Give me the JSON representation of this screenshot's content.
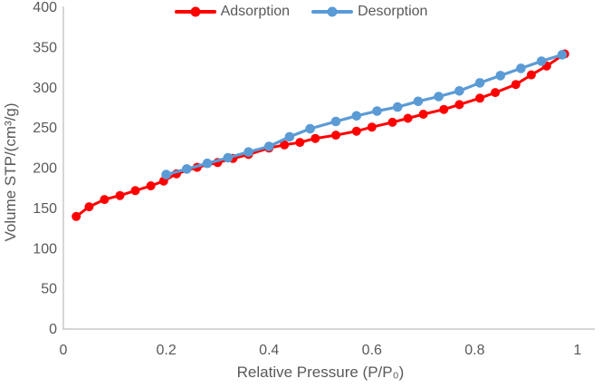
{
  "chart_data": {
    "type": "line",
    "title": "",
    "xlabel": "Relative Pressure (P/P₀)",
    "ylabel": "Volume STP/(cm³/g)",
    "xlim": [
      0,
      1
    ],
    "ylim": [
      0,
      400
    ],
    "x_ticks": {
      "values": [
        0,
        0.2,
        0.4,
        0.6,
        0.8,
        1
      ],
      "labels": [
        "0",
        "0.2",
        "0.4",
        "0.6",
        "0.8",
        "1"
      ]
    },
    "y_ticks": {
      "values": [
        0,
        50,
        100,
        150,
        200,
        250,
        300,
        350,
        400
      ],
      "labels": [
        "0",
        "50",
        "100",
        "150",
        "200",
        "250",
        "300",
        "350",
        "400"
      ]
    },
    "grid": false,
    "legend_position": "top-center",
    "colors": {
      "axis_line": "#BFBFBF",
      "text": "#595959",
      "background": "#FFFFFF"
    },
    "series": [
      {
        "name": "Adsorption",
        "color": "#FF0000",
        "marker": "circle",
        "marker_radius": 5,
        "line_width": 3,
        "points": [
          [
            0.025,
            140
          ],
          [
            0.05,
            152
          ],
          [
            0.08,
            161
          ],
          [
            0.11,
            166
          ],
          [
            0.14,
            172
          ],
          [
            0.17,
            178
          ],
          [
            0.195,
            184
          ],
          [
            0.22,
            193
          ],
          [
            0.26,
            201
          ],
          [
            0.3,
            207
          ],
          [
            0.33,
            212
          ],
          [
            0.36,
            217
          ],
          [
            0.4,
            225
          ],
          [
            0.43,
            229
          ],
          [
            0.46,
            232
          ],
          [
            0.49,
            237
          ],
          [
            0.53,
            241
          ],
          [
            0.57,
            246
          ],
          [
            0.6,
            251
          ],
          [
            0.64,
            257
          ],
          [
            0.67,
            262
          ],
          [
            0.7,
            267
          ],
          [
            0.74,
            273
          ],
          [
            0.77,
            279
          ],
          [
            0.81,
            287
          ],
          [
            0.84,
            294
          ],
          [
            0.88,
            304
          ],
          [
            0.91,
            316
          ],
          [
            0.94,
            327
          ],
          [
            0.975,
            342
          ]
        ]
      },
      {
        "name": "Desorption",
        "color": "#5B9BD5",
        "marker": "circle",
        "marker_radius": 5.3,
        "line_width": 3.2,
        "points": [
          [
            0.2,
            192
          ],
          [
            0.24,
            199
          ],
          [
            0.28,
            206
          ],
          [
            0.32,
            213
          ],
          [
            0.36,
            220
          ],
          [
            0.4,
            227
          ],
          [
            0.44,
            239
          ],
          [
            0.48,
            249
          ],
          [
            0.53,
            258
          ],
          [
            0.57,
            265
          ],
          [
            0.61,
            271
          ],
          [
            0.65,
            276
          ],
          [
            0.69,
            283
          ],
          [
            0.73,
            289
          ],
          [
            0.77,
            296
          ],
          [
            0.81,
            306
          ],
          [
            0.85,
            315
          ],
          [
            0.89,
            324
          ],
          [
            0.93,
            333
          ],
          [
            0.97,
            341
          ]
        ]
      }
    ]
  }
}
